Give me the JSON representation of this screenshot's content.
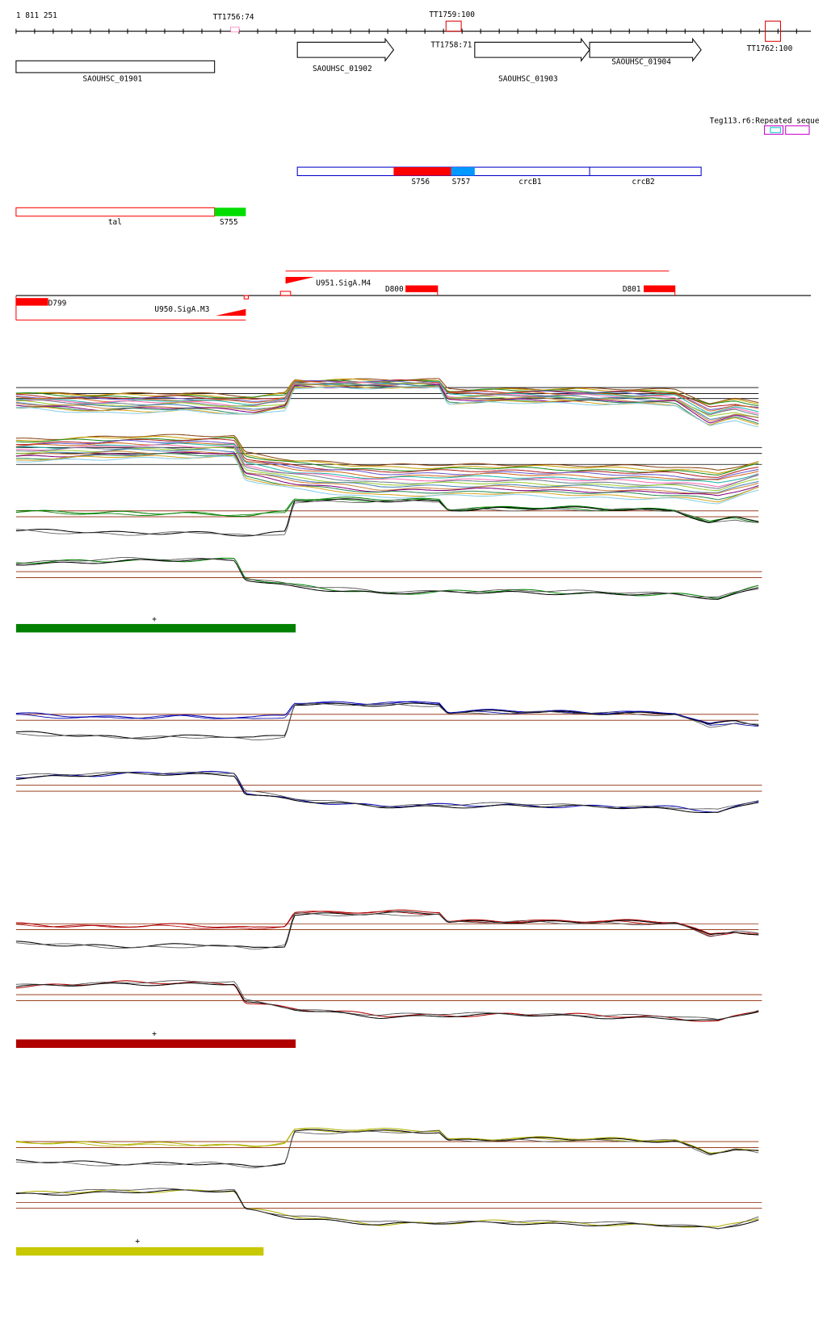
{
  "ruler": {
    "start": "1 811 251"
  },
  "terminators": [
    "TT1756:74",
    "TT1759:100",
    "TT1758:71",
    "TT1762:100"
  ],
  "genes": [
    "SAOUHSC_01901",
    "SAOUHSC_01902",
    "SAOUHSC_01903",
    "SAOUHSC_01904"
  ],
  "repeat_label": "Teg113.r6:Repeated seque",
  "regions": [
    "S756",
    "S757",
    "crcB1",
    "crcB2",
    "tal",
    "S755"
  ],
  "promoters": [
    "U951.SigA.M4",
    "U950.SigA.M3"
  ],
  "features": [
    "D800",
    "D801",
    "D799"
  ],
  "plus_marks": [
    "+",
    "+",
    "+"
  ]
}
